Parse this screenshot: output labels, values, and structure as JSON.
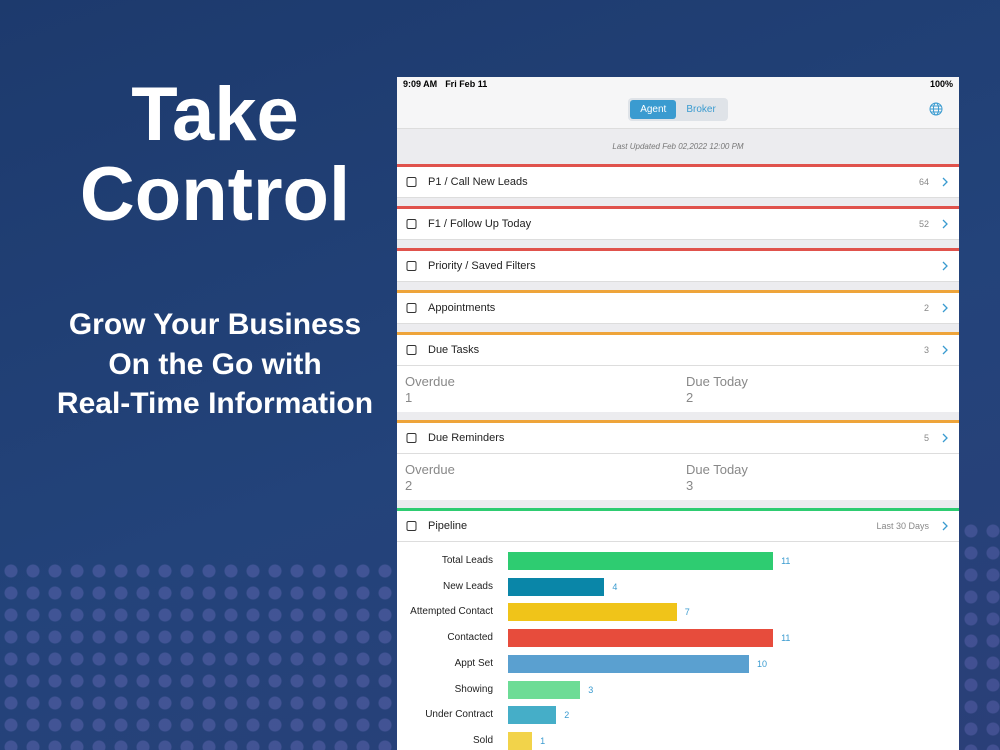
{
  "promo": {
    "title_lines": [
      "Take",
      "Control"
    ],
    "subtitle_lines": [
      "Grow Your Business",
      "On the Go with",
      "Real-Time Information"
    ]
  },
  "status_bar": {
    "time": "9:09 AM",
    "date": "Fri Feb 11",
    "battery": "100%"
  },
  "tabs": {
    "items": [
      "Agent",
      "Broker"
    ],
    "active": 0
  },
  "last_updated": "Last Updated Feb 02,2022 12:00 PM",
  "sections": [
    {
      "label": "P1 / Call New Leads",
      "count": 64,
      "color": "#e0524c"
    },
    {
      "label": "F1 / Follow Up Today",
      "count": 52,
      "color": "#e0524c"
    },
    {
      "label": "Priority / Saved Filters",
      "color": "#e0524c"
    },
    {
      "label": "Appointments",
      "count": 2,
      "color": "#eea43a"
    },
    {
      "label": "Due Tasks",
      "count": 3,
      "color": "#eea43a",
      "details": [
        {
          "label": "Overdue",
          "value": 1
        },
        {
          "label": "Due Today",
          "value": 2
        }
      ]
    },
    {
      "label": "Due Reminders",
      "count": 5,
      "color": "#eea43a",
      "details": [
        {
          "label": "Overdue",
          "value": 2
        },
        {
          "label": "Due Today",
          "value": 3
        }
      ]
    }
  ],
  "pipeline": {
    "label": "Pipeline",
    "range": "Last 30 Days",
    "color": "#2ecc71",
    "chart": {
      "type": "bar",
      "categories": [
        "Total Leads",
        "New Leads",
        "Attempted Contact",
        "Contacted",
        "Appt Set",
        "Showing",
        "Under Contract",
        "Sold"
      ],
      "values": [
        11,
        4,
        7,
        11,
        10,
        3,
        2,
        1
      ],
      "colors": [
        "#2ecc71",
        "#0a86a8",
        "#f0c419",
        "#e74c3c",
        "#5aa0d0",
        "#6ddc96",
        "#45aec8",
        "#f2d34a"
      ]
    }
  }
}
